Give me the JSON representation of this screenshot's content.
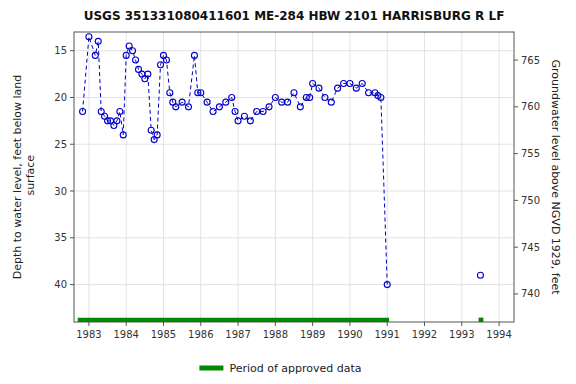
{
  "chart_data": {
    "type": "line",
    "title": "USGS 351331080411601 ME-284 HBW 2101 HARRISBURG R LF",
    "ylabel": "Depth to water level, feet below land\n surface",
    "y2label": "Groundwater level above NGVD 1929, feet",
    "xlim": [
      1982.6,
      1994.4
    ],
    "xticks": [
      1983,
      1984,
      1985,
      1986,
      1987,
      1988,
      1989,
      1990,
      1991,
      1992,
      1993,
      1994
    ],
    "ylim": [
      44,
      13
    ],
    "yticks": [
      15,
      20,
      25,
      30,
      35,
      40
    ],
    "y2lim": [
      737,
      768
    ],
    "y2ticks": [
      765,
      760,
      755,
      750,
      745,
      740
    ],
    "grid": true,
    "legend": "bottom",
    "series": [
      {
        "color": "#0000cc",
        "line_style": "dashed",
        "marker": "circle",
        "x": [
          1982.83,
          1983.0,
          1983.17,
          1983.25,
          1983.33,
          1983.42,
          1983.5,
          1983.58,
          1983.67,
          1983.75,
          1983.83,
          1983.92,
          1984.0,
          1984.08,
          1984.17,
          1984.25,
          1984.33,
          1984.42,
          1984.5,
          1984.58,
          1984.67,
          1984.75,
          1984.83,
          1984.92,
          1985.0,
          1985.08,
          1985.17,
          1985.25,
          1985.33,
          1985.5,
          1985.67,
          1985.83,
          1985.92,
          1986.0,
          1986.17,
          1986.33,
          1986.5,
          1986.67,
          1986.83,
          1986.92,
          1987.0,
          1987.17,
          1987.33,
          1987.5,
          1987.67,
          1987.83,
          1988.0,
          1988.17,
          1988.33,
          1988.5,
          1988.67,
          1988.83,
          1988.92,
          1989.0,
          1989.17,
          1989.33,
          1989.5,
          1989.67,
          1989.83,
          1990.0,
          1990.17,
          1990.33,
          1990.5,
          1990.67,
          1990.75,
          1990.83,
          1991.0
        ],
        "values": [
          21.5,
          13.5,
          15.5,
          14.0,
          21.5,
          22.0,
          22.5,
          22.5,
          23.0,
          22.5,
          21.5,
          24.0,
          15.5,
          14.5,
          15.0,
          16.0,
          17.0,
          17.5,
          18.0,
          17.5,
          23.5,
          24.5,
          24.0,
          16.5,
          15.5,
          16.0,
          19.5,
          20.5,
          21.0,
          20.5,
          21.0,
          15.5,
          19.5,
          19.5,
          20.5,
          21.5,
          21.0,
          20.5,
          20.0,
          21.5,
          22.5,
          22.0,
          22.5,
          21.5,
          21.5,
          21.0,
          20.0,
          20.5,
          20.5,
          19.5,
          21.0,
          20.0,
          20.0,
          18.5,
          19.0,
          20.0,
          20.5,
          19.0,
          18.5,
          18.5,
          19.0,
          18.5,
          19.5,
          19.5,
          19.8,
          20.0,
          40.0
        ]
      },
      {
        "color": "#0000cc",
        "line_style": "none",
        "marker": "circle",
        "x": [
          1993.5
        ],
        "values": [
          39.0
        ]
      },
      {
        "name": "Period of approved data",
        "color": "#008800",
        "line_style": "solid",
        "marker": "none",
        "x": [
          1982.7,
          1991.05
        ],
        "values": [
          43.8,
          43.8
        ]
      },
      {
        "color": "#008800",
        "line_style": "solid",
        "marker": "none",
        "x": [
          1993.45,
          1993.58
        ],
        "values": [
          43.8,
          43.8
        ]
      }
    ]
  }
}
